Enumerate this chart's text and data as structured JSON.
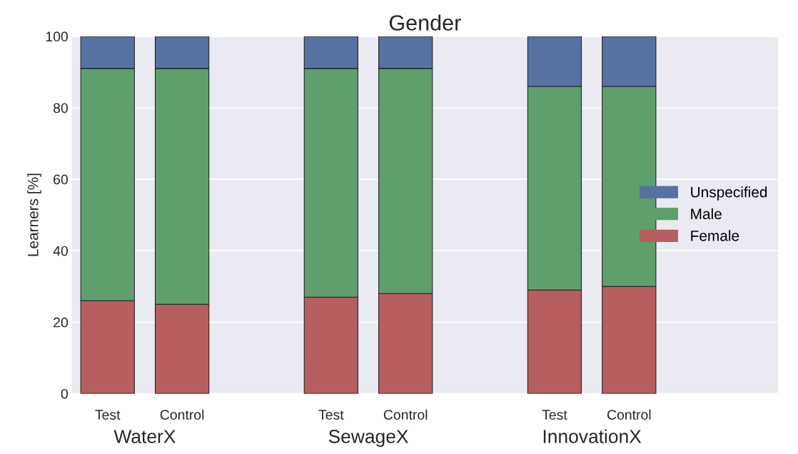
{
  "chart_data": {
    "type": "bar",
    "title": "Gender",
    "ylabel": "Learners [%]",
    "categories": [
      "Test",
      "Control",
      null,
      "Test",
      "Control",
      null,
      "Test",
      "Control",
      null,
      null
    ],
    "series": [
      {
        "name": "Female",
        "color": "#b75e60",
        "values": [
          26,
          25,
          null,
          27,
          28,
          null,
          29,
          30,
          null,
          null
        ]
      },
      {
        "name": "Male",
        "color": "#5f9f6e",
        "values": [
          65,
          66,
          null,
          64,
          63,
          null,
          57,
          56,
          null,
          null
        ]
      },
      {
        "name": "Unspecified",
        "color": "#5572a2",
        "values": [
          9,
          9,
          null,
          9,
          9,
          null,
          14,
          14,
          null,
          null
        ]
      }
    ],
    "stacked": true,
    "ylim": [
      0,
      100
    ],
    "yticks": [
      0,
      20,
      40,
      60,
      80,
      100
    ],
    "grid": "y",
    "legend": "right",
    "annotations": [
      "WaterX",
      "SewageX",
      "InnovationX"
    ]
  }
}
